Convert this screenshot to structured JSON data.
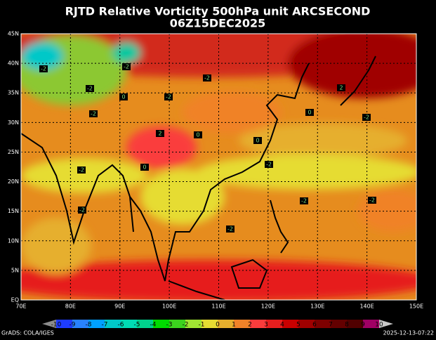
{
  "header": {
    "title": "RJTD Relative Vorticity 500hPa unit ARCSECOND",
    "subtitle": "06Z15DEC2025"
  },
  "map": {
    "lon_labels": [
      "70E",
      "80E",
      "90E",
      "100E",
      "110E",
      "120E",
      "130E",
      "140E",
      "150E"
    ],
    "lat_labels": [
      "EQ",
      "5N",
      "10N",
      "15N",
      "20N",
      "25N",
      "30N",
      "35N",
      "40N",
      "45N"
    ],
    "contour_labels": [
      "-2",
      "-2",
      "-2",
      "-2",
      "-2",
      "0",
      "2",
      "-2",
      "0",
      "-2",
      "-2",
      "-2",
      "0",
      "-2",
      "-2",
      "0",
      "2",
      "-2",
      "0",
      "-2"
    ]
  },
  "colorbar": {
    "labels": [
      -10,
      -9,
      -8,
      -7,
      -6,
      -5,
      -4,
      -3,
      -2,
      -1,
      0,
      1,
      2,
      3,
      4,
      5,
      6,
      7,
      8,
      9,
      10
    ],
    "colors": [
      "#8c8c8c",
      "#1e3cff",
      "#2882ff",
      "#00a0ff",
      "#00c8c8",
      "#00dcb4",
      "#00d28c",
      "#00dc00",
      "#3cd21e",
      "#a0e632",
      "#e6dc32",
      "#e6af2d",
      "#f08228",
      "#fa3c3c",
      "#e61e1e",
      "#c80000",
      "#a00000",
      "#7d0000",
      "#640000",
      "#500000",
      "#a00064",
      "#c8c8c8"
    ]
  },
  "footer": {
    "credit": "GrADS: COLA/IGES",
    "timestamp": "2025-12-13-07:22"
  }
}
